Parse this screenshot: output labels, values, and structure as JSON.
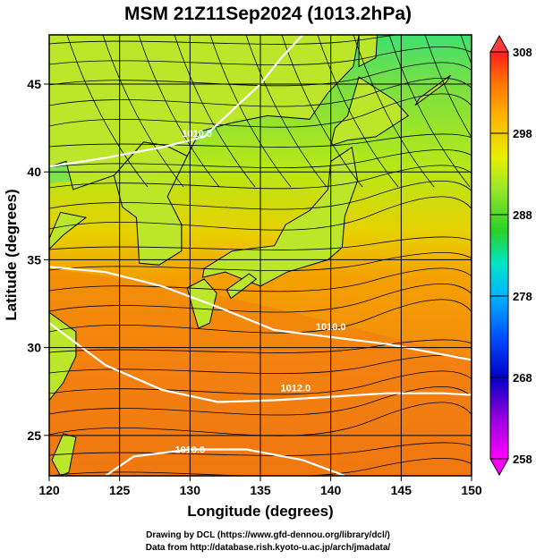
{
  "title": "MSM 21Z11Sep2024 (1013.2hPa)",
  "xlabel": "Longitude (degrees)",
  "ylabel": "Latitude  (degrees)",
  "xticks": [
    120,
    125,
    130,
    135,
    140,
    145,
    150
  ],
  "yticks": [
    25,
    30,
    35,
    40,
    45
  ],
  "colorbar": {
    "ticks": [
      258,
      268,
      278,
      288,
      298,
      308
    ],
    "range": [
      258,
      308
    ],
    "colors": [
      "#ff00ff",
      "#0000c8",
      "#0078ff",
      "#00d2ff",
      "#00e6a0",
      "#28d228",
      "#96e628",
      "#e6f000",
      "#ffb400",
      "#ff7800",
      "#ff1e1e"
    ]
  },
  "isobars": [
    {
      "label": "1010.0",
      "lon": 140.0,
      "lat": 31.0
    },
    {
      "label": "1012.0",
      "lon": 137.5,
      "lat": 27.5
    },
    {
      "label": "1010.0",
      "lon": 130.0,
      "lat": 24.0
    },
    {
      "label": "1010.0",
      "lon": 130.5,
      "lat": 42.0
    }
  ],
  "credits": {
    "line1": "Drawing by DCL (https://www.gfd-dennou.org/library/dcl/)",
    "line2": "Data from http://database.rish.kyoto-u.ac.jp/arch/jmadata/"
  }
}
